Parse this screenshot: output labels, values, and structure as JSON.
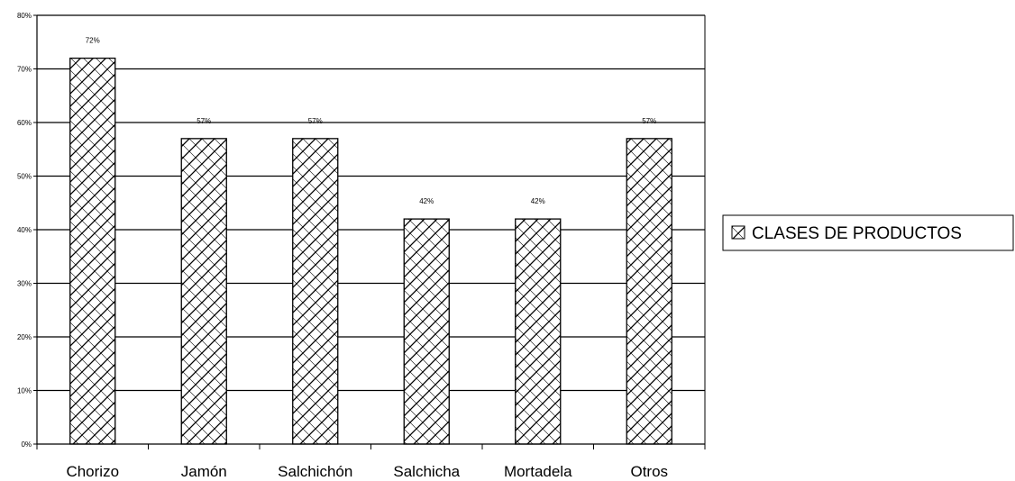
{
  "chart_data": {
    "type": "bar",
    "categories": [
      "Chorizo",
      "Jamón",
      "Salchichón",
      "Salchicha",
      "Mortadela",
      "Otros"
    ],
    "series": [
      {
        "name": "CLASES DE PRODUCTOS",
        "values": [
          72,
          57,
          57,
          42,
          42,
          57
        ]
      }
    ],
    "data_labels": [
      "72%",
      "57%",
      "57%",
      "42%",
      "42%",
      "57%"
    ],
    "ylim": [
      0,
      80
    ],
    "yticks": [
      0,
      10,
      20,
      30,
      40,
      50,
      60,
      70,
      80
    ],
    "ytick_labels": [
      "0%",
      "10%",
      "20%",
      "30%",
      "40%",
      "50%",
      "60%",
      "70%",
      "80%"
    ],
    "title": "",
    "xlabel": "",
    "ylabel": "",
    "grid": true,
    "legend_position": "right",
    "bar_fill": "crosshatch",
    "colors": {
      "bar_stroke": "#000000",
      "bar_fill": "#ffffff",
      "gridline": "#000000"
    }
  }
}
